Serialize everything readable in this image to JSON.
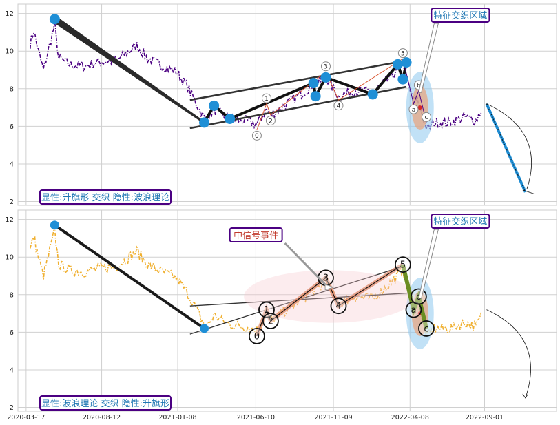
{
  "chart_data": [
    {
      "type": "line",
      "panel": "top",
      "ylim": [
        1.8,
        12.5
      ],
      "yticks": [
        2,
        4,
        6,
        8,
        10,
        12
      ],
      "grid": true,
      "series_color": "#4b0082",
      "series_style": "dash-dot",
      "caption": "显性:升旗形 交织 隐性:波浪理论",
      "region_label": "特征交织区域",
      "wave_labels": [
        "0",
        "1",
        "2",
        "3",
        "4",
        "5",
        "a",
        "b",
        "c"
      ],
      "wave_points": [
        {
          "label": "0",
          "x": "2021-06-12",
          "y": 5.8
        },
        {
          "label": "1",
          "x": "2021-07-01",
          "y": 7.2
        },
        {
          "label": "2",
          "x": "2021-07-09",
          "y": 6.6
        },
        {
          "label": "3",
          "x": "2021-10-25",
          "y": 8.9
        },
        {
          "label": "4",
          "x": "2021-11-19",
          "y": 7.4
        },
        {
          "label": "5",
          "x": "2022-03-25",
          "y": 9.6
        },
        {
          "label": "a",
          "x": "2022-04-15",
          "y": 7.2
        },
        {
          "label": "b",
          "x": "2022-04-25",
          "y": 7.9
        },
        {
          "label": "c",
          "x": "2022-05-10",
          "y": 6.2
        }
      ],
      "pattern_points": [
        {
          "x": "2020-05-12",
          "y": 11.7
        },
        {
          "x": "2021-03-01",
          "y": 6.2
        },
        {
          "x": "2021-03-20",
          "y": 7.1
        },
        {
          "x": "2021-04-20",
          "y": 6.4
        },
        {
          "x": "2021-10-01",
          "y": 8.3
        },
        {
          "x": "2021-10-05",
          "y": 7.6
        },
        {
          "x": "2021-10-25",
          "y": 8.6
        },
        {
          "x": "2022-01-25",
          "y": 7.7
        },
        {
          "x": "2022-03-15",
          "y": 9.3
        },
        {
          "x": "2022-03-25",
          "y": 8.5
        },
        {
          "x": "2022-04-01",
          "y": 9.4
        }
      ],
      "flag_lines": [
        [
          {
            "x": "2021-02-01",
            "y": 7.4
          },
          {
            "x": "2022-04-01",
            "y": 9.5
          }
        ],
        [
          {
            "x": "2021-02-01",
            "y": 5.9
          },
          {
            "x": "2022-04-01",
            "y": 8.1
          }
        ]
      ]
    },
    {
      "type": "line",
      "panel": "bottom",
      "ylim": [
        1.8,
        12.5
      ],
      "yticks": [
        2,
        4,
        6,
        8,
        10,
        12
      ],
      "grid": true,
      "series_color": "#f0b030",
      "series_style": "dash-dot",
      "caption": "显性:波浪理论 交织 隐性:升旗形",
      "region_label": "特征交织区域",
      "event_label": "中信号事件",
      "wave_labels": [
        "0",
        "1",
        "2",
        "3",
        "4",
        "5",
        "a",
        "b",
        "c"
      ],
      "wave_points": [
        {
          "label": "0",
          "x": "2021-06-12",
          "y": 5.8
        },
        {
          "label": "1",
          "x": "2021-07-01",
          "y": 7.2
        },
        {
          "label": "2",
          "x": "2021-07-09",
          "y": 6.6
        },
        {
          "label": "3",
          "x": "2021-10-25",
          "y": 8.9
        },
        {
          "label": "4",
          "x": "2021-11-19",
          "y": 7.4
        },
        {
          "label": "5",
          "x": "2022-03-25",
          "y": 9.6
        },
        {
          "label": "a",
          "x": "2022-04-15",
          "y": 7.2
        },
        {
          "label": "b",
          "x": "2022-04-25",
          "y": 7.9
        },
        {
          "label": "c",
          "x": "2022-05-10",
          "y": 6.2
        }
      ],
      "pattern_points": [
        {
          "x": "2020-05-12",
          "y": 11.7
        },
        {
          "x": "2021-03-01",
          "y": 6.2
        }
      ],
      "flag_lines": [
        [
          {
            "x": "2021-02-01",
            "y": 5.9
          },
          {
            "x": "2022-03-25",
            "y": 9.5
          }
        ],
        [
          {
            "x": "2021-02-01",
            "y": 7.4
          },
          {
            "x": "2022-04-15",
            "y": 8.1
          }
        ]
      ]
    }
  ],
  "x_axis": {
    "type": "date",
    "range": [
      "2020-03-01",
      "2023-01-20"
    ],
    "ticks": [
      "2020-03-17",
      "2020-08-12",
      "2021-01-08",
      "2021-06-10",
      "2021-11-09",
      "2022-04-08",
      "2022-09-01"
    ]
  },
  "colors": {
    "grid": "#d0d0d0",
    "box_border": "#4b0082",
    "caption_text": "#1f77b4",
    "event_text": "#c0392b",
    "pattern_line": "#111111",
    "marker": "#1f8fd6",
    "wave_bottom": "#e08a6a",
    "abc_bottom": "#6b8e23",
    "forecast": "#1f8fd6"
  }
}
